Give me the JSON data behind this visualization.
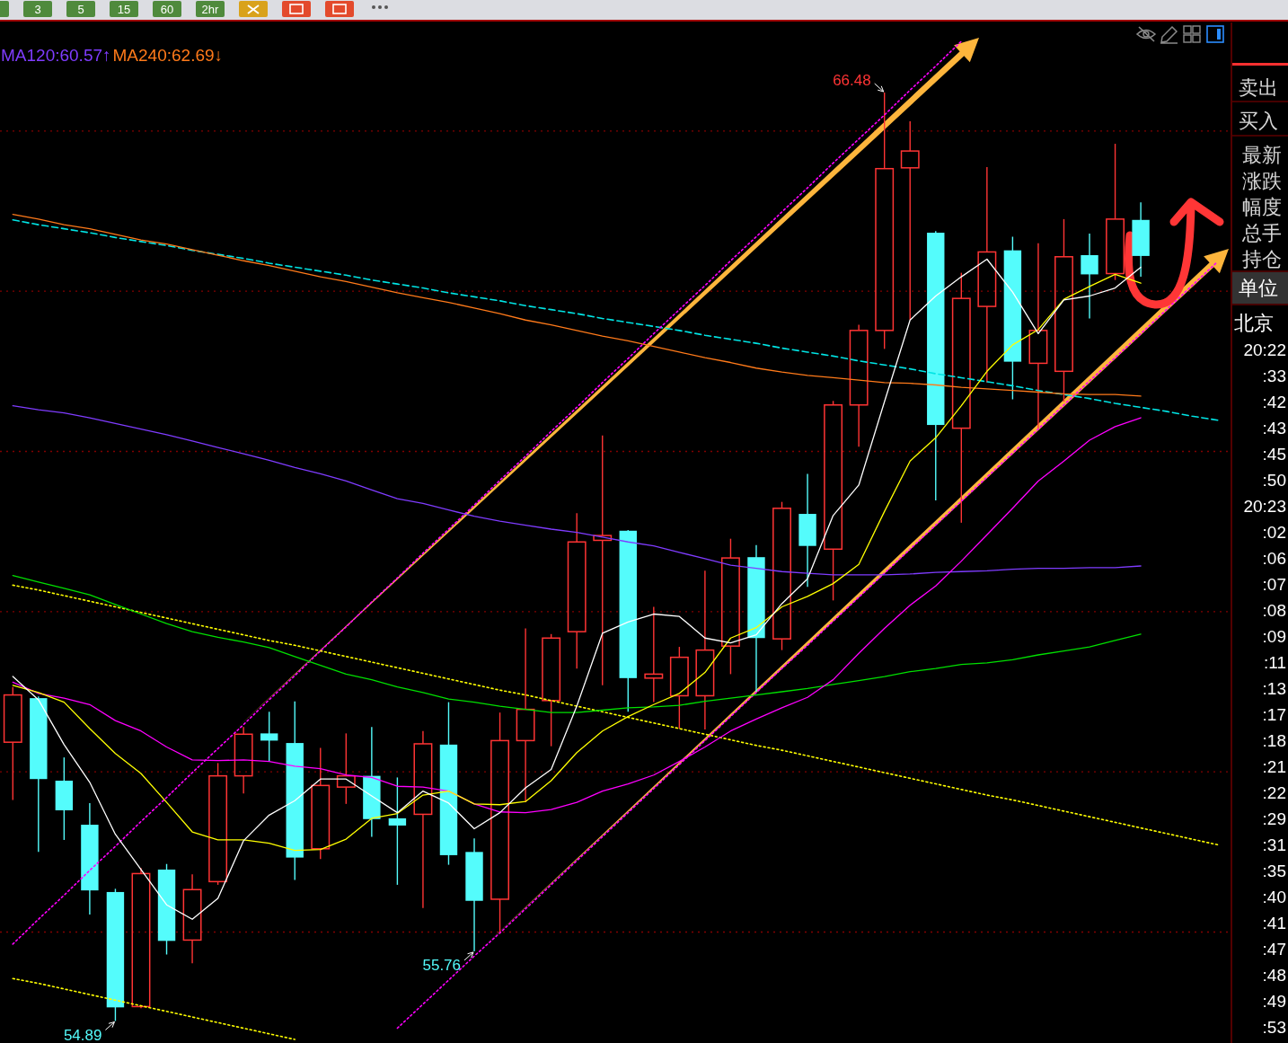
{
  "chart_data": [
    {
      "type": "candlestick",
      "categories": [
        null,
        null,
        null,
        null,
        null,
        null,
        null,
        null,
        null,
        null,
        null,
        null,
        null,
        null,
        null,
        null,
        null,
        null,
        null,
        null,
        null,
        null,
        null,
        null,
        null,
        null,
        null,
        null,
        null,
        null,
        null,
        null,
        null,
        null,
        null,
        null,
        null,
        null,
        null,
        null,
        null,
        null,
        null,
        null,
        null,
        null,
        null,
        null
      ],
      "ohlc": [
        [
          58.37,
          59.06,
          57.65,
          58.96
        ],
        [
          58.92,
          58.94,
          57.0,
          57.91
        ],
        [
          57.89,
          58.18,
          57.15,
          57.52
        ],
        [
          57.34,
          57.61,
          56.22,
          56.52
        ],
        [
          56.5,
          56.54,
          54.89,
          55.06
        ],
        [
          55.07,
          56.8,
          55.05,
          56.73
        ],
        [
          56.78,
          56.85,
          55.72,
          55.89
        ],
        [
          55.9,
          56.72,
          55.61,
          56.53
        ],
        [
          56.63,
          58.11,
          56.59,
          57.95
        ],
        [
          57.95,
          58.56,
          57.73,
          58.47
        ],
        [
          58.48,
          58.75,
          58.13,
          58.39
        ],
        [
          58.36,
          58.88,
          56.65,
          56.93
        ],
        [
          57.04,
          58.3,
          56.91,
          57.83
        ],
        [
          57.81,
          58.48,
          57.6,
          57.95
        ],
        [
          57.95,
          58.56,
          57.19,
          57.41
        ],
        [
          57.42,
          57.93,
          56.59,
          57.33
        ],
        [
          57.47,
          58.51,
          56.3,
          58.35
        ],
        [
          58.34,
          58.87,
          56.84,
          56.96
        ],
        [
          57.0,
          57.17,
          55.76,
          56.39
        ],
        [
          56.41,
          58.74,
          55.98,
          58.39
        ],
        [
          58.39,
          59.79,
          57.62,
          58.78
        ],
        [
          58.89,
          59.72,
          58.32,
          59.67
        ],
        [
          59.75,
          61.23,
          59.29,
          60.87
        ],
        [
          60.89,
          62.2,
          59.08,
          60.95
        ],
        [
          61.01,
          61.02,
          58.75,
          59.17
        ],
        [
          59.17,
          60.06,
          58.87,
          59.22
        ],
        [
          58.95,
          59.56,
          58.54,
          59.43
        ],
        [
          58.95,
          60.51,
          58.53,
          59.52
        ],
        [
          59.57,
          60.91,
          59.22,
          60.67
        ],
        [
          60.68,
          60.83,
          59.0,
          59.67
        ],
        [
          59.66,
          61.37,
          59.52,
          61.29
        ],
        [
          61.22,
          61.72,
          60.31,
          60.82
        ],
        [
          60.78,
          62.63,
          60.14,
          62.58
        ],
        [
          62.58,
          63.58,
          62.06,
          63.51
        ],
        [
          63.51,
          66.48,
          63.28,
          65.53
        ],
        [
          65.54,
          66.12,
          63.64,
          65.75
        ],
        [
          64.73,
          64.75,
          61.39,
          62.33
        ],
        [
          62.29,
          64.23,
          61.11,
          63.91
        ],
        [
          63.81,
          65.55,
          62.86,
          64.49
        ],
        [
          64.51,
          64.68,
          62.65,
          63.12
        ],
        [
          63.1,
          64.6,
          62.28,
          63.51
        ],
        [
          63.0,
          64.9,
          62.62,
          64.43
        ],
        [
          64.45,
          64.72,
          63.66,
          64.21
        ],
        [
          64.22,
          65.84,
          64.14,
          64.9
        ],
        [
          64.89,
          65.11,
          64.18,
          64.44
        ],
        null,
        null,
        null
      ],
      "series": [
        {
          "type": "line",
          "color": "#00e5e5",
          "line_style": "dashed",
          "values": [
            64.89,
            64.83,
            64.78,
            64.73,
            64.67,
            64.62,
            64.57,
            64.51,
            64.46,
            64.41,
            64.35,
            64.3,
            64.25,
            64.2,
            64.14,
            64.09,
            64.04,
            63.98,
            63.93,
            63.88,
            63.82,
            63.77,
            63.72,
            63.66,
            63.61,
            63.56,
            63.51,
            63.45,
            63.4,
            63.35,
            63.29,
            63.24,
            63.19,
            63.13,
            63.08,
            63.03,
            62.97,
            62.92,
            62.87,
            62.82,
            62.76,
            62.71,
            62.66,
            62.6,
            62.55,
            62.5,
            62.44,
            62.39
          ]
        },
        {
          "type": "line",
          "color": "#ffff00",
          "line_style": "dotted",
          "values": [
            60.33,
            60.27,
            60.2,
            60.13,
            60.06,
            59.99,
            59.92,
            59.85,
            59.78,
            59.71,
            59.64,
            59.58,
            59.51,
            59.44,
            59.37,
            59.3,
            59.23,
            59.16,
            59.09,
            59.02,
            58.96,
            58.89,
            58.82,
            58.75,
            58.68,
            58.61,
            58.54,
            58.47,
            58.4,
            58.33,
            58.27,
            58.2,
            58.13,
            58.06,
            57.99,
            57.92,
            57.85,
            57.78,
            57.71,
            57.65,
            57.58,
            57.51,
            57.44,
            57.37,
            57.3,
            57.23,
            57.16,
            57.09
          ]
        },
        {
          "type": "line",
          "color": "#ffff00",
          "line_style": "dotted",
          "values": [
            55.42,
            55.36,
            55.29,
            55.22,
            55.15,
            55.08,
            55.01,
            54.94,
            54.87,
            54.8,
            54.73,
            54.66,
            null,
            null,
            null,
            null,
            null,
            null,
            null,
            null,
            null,
            null,
            null,
            null,
            null,
            null,
            null,
            null,
            null,
            null,
            null,
            null,
            null,
            null,
            null,
            null,
            null,
            null,
            null,
            null,
            null,
            null,
            null,
            null,
            null,
            null,
            null,
            null
          ]
        },
        {
          "type": "line",
          "color": "#ff00ff",
          "line_style": "dotted",
          "values": [
            55.85,
            56.16,
            56.46,
            56.77,
            57.07,
            57.38,
            57.68,
            57.99,
            58.29,
            58.59,
            58.9,
            59.2,
            59.51,
            59.81,
            60.12,
            60.42,
            60.73,
            61.03,
            61.33,
            61.64,
            61.94,
            62.25,
            62.55,
            62.86,
            63.16,
            63.47,
            63.77,
            64.07,
            64.38,
            64.68,
            64.99,
            65.29,
            65.6,
            65.9,
            66.2,
            66.51,
            66.81,
            67.12,
            null,
            null,
            null,
            null,
            null,
            null,
            null,
            null,
            null,
            null
          ]
        },
        {
          "type": "line",
          "color": "#ff00ff",
          "line_style": "dotted",
          "values": [
            null,
            null,
            null,
            null,
            null,
            null,
            null,
            null,
            null,
            null,
            null,
            null,
            null,
            null,
            null,
            54.8,
            55.1,
            55.4,
            55.7,
            55.99,
            56.29,
            56.59,
            56.89,
            57.19,
            57.49,
            57.79,
            58.09,
            58.39,
            58.69,
            58.99,
            59.29,
            59.58,
            59.88,
            60.18,
            60.48,
            60.78,
            61.08,
            61.38,
            61.68,
            61.98,
            62.28,
            62.58,
            62.88,
            63.17,
            63.47,
            63.77,
            64.07,
            64.37
          ]
        },
        {
          "type": "line",
          "name": "MA120:60.57↑",
          "color": "#7f3cff",
          "values": [
            62.57,
            62.52,
            62.48,
            62.42,
            62.35,
            62.28,
            62.21,
            62.13,
            62.05,
            61.97,
            61.89,
            61.8,
            61.72,
            61.63,
            61.52,
            61.41,
            61.35,
            61.27,
            61.19,
            61.13,
            61.08,
            61.03,
            60.99,
            60.93,
            60.87,
            60.82,
            60.74,
            60.66,
            60.58,
            60.54,
            60.5,
            60.48,
            60.46,
            60.46,
            60.46,
            60.47,
            60.49,
            60.5,
            60.51,
            60.53,
            60.54,
            60.54,
            60.55,
            60.55,
            60.57,
            null,
            null,
            null
          ]
        },
        {
          "type": "line",
          "name": "MA240:62.69↓",
          "color": "#ff7a1a",
          "values": [
            64.96,
            64.9,
            64.83,
            64.78,
            64.71,
            64.64,
            64.59,
            64.52,
            64.45,
            64.38,
            64.32,
            64.25,
            64.18,
            64.12,
            64.05,
            63.98,
            63.92,
            63.86,
            63.79,
            63.72,
            63.64,
            63.58,
            63.51,
            63.44,
            63.38,
            63.31,
            63.24,
            63.17,
            63.11,
            63.04,
            62.99,
            62.95,
            62.92,
            62.89,
            62.86,
            62.85,
            62.83,
            62.8,
            62.78,
            62.76,
            62.74,
            62.72,
            62.71,
            62.71,
            62.69,
            null,
            null,
            null
          ]
        },
        {
          "type": "line",
          "color": "#00e000",
          "values": [
            60.45,
            60.37,
            60.29,
            60.21,
            60.09,
            59.97,
            59.85,
            59.75,
            59.68,
            59.62,
            59.55,
            59.44,
            59.33,
            59.22,
            59.15,
            59.06,
            58.99,
            58.91,
            58.87,
            58.82,
            58.78,
            58.74,
            58.74,
            58.77,
            58.8,
            58.81,
            58.83,
            58.88,
            58.92,
            58.96,
            59.0,
            59.04,
            59.09,
            59.14,
            59.19,
            59.25,
            59.29,
            59.34,
            59.36,
            59.4,
            59.46,
            59.51,
            59.56,
            59.64,
            59.72,
            null,
            null,
            null
          ]
        },
        {
          "type": "line",
          "color": "#ff00ff",
          "values": [
            59.12,
            58.98,
            58.92,
            58.84,
            58.64,
            58.51,
            58.31,
            58.15,
            58.14,
            58.15,
            58.13,
            58.07,
            58.04,
            57.96,
            57.93,
            57.82,
            57.81,
            57.76,
            57.6,
            57.5,
            57.49,
            57.53,
            57.62,
            57.76,
            57.85,
            57.96,
            58.13,
            58.31,
            58.51,
            58.66,
            58.8,
            58.93,
            59.15,
            59.48,
            59.79,
            60.08,
            60.32,
            60.63,
            60.96,
            61.29,
            61.63,
            61.88,
            62.14,
            62.31,
            62.42,
            null,
            null,
            null
          ]
        },
        {
          "type": "line",
          "color": "#ffff00",
          "values": [
            59.08,
            58.99,
            58.87,
            58.54,
            58.23,
            57.98,
            57.62,
            57.25,
            57.15,
            57.15,
            57.11,
            57.02,
            57.03,
            57.16,
            57.42,
            57.48,
            57.71,
            57.76,
            57.6,
            57.59,
            57.63,
            57.89,
            58.24,
            58.51,
            58.69,
            58.84,
            58.98,
            59.24,
            59.67,
            59.8,
            60.06,
            60.19,
            60.35,
            60.59,
            61.25,
            61.88,
            62.17,
            62.57,
            63.0,
            63.33,
            63.52,
            63.9,
            64.06,
            64.21,
            64.1,
            null,
            null,
            null
          ]
        },
        {
          "type": "line",
          "color": "#ffffff",
          "values": [
            59.19,
            58.9,
            58.34,
            57.87,
            57.22,
            56.78,
            56.34,
            56.16,
            56.42,
            57.14,
            57.46,
            57.64,
            57.91,
            57.91,
            57.7,
            57.49,
            57.76,
            57.61,
            57.29,
            57.49,
            57.8,
            58.03,
            58.82,
            59.73,
            59.87,
            59.97,
            59.94,
            59.67,
            59.61,
            59.71,
            60.1,
            60.41,
            61.2,
            61.58,
            62.62,
            63.64,
            63.94,
            64.18,
            64.4,
            63.99,
            63.47,
            63.89,
            63.94,
            64.04,
            64.3,
            null,
            null,
            null
          ]
        }
      ],
      "yticks": [
        {
          "value": 56,
          "label": null
        },
        {
          "value": 58,
          "label": null
        },
        {
          "value": 60,
          "label": null
        },
        {
          "value": 62,
          "label": null
        },
        {
          "value": 64,
          "label": null
        },
        {
          "value": 66,
          "label": null
        }
      ],
      "grid": "y",
      "legend": "top left",
      "annotations": [
        "66.48",
        "54.89",
        "55.76"
      ]
    },
    {
      "type": "other",
      "annotations": [
        "卖出",
        "买入",
        "最新",
        "涨跌",
        "幅度",
        "总手",
        "持仓",
        "单位",
        "北京",
        "20:22",
        ":33",
        ":42",
        ":43",
        ":45",
        ":50",
        "20:23",
        ":02",
        ":06",
        ":07",
        ":08",
        ":09",
        ":11",
        ":13",
        ":17",
        ":18",
        ":21",
        ":22",
        ":29",
        ":31",
        ":35",
        ":40",
        ":41",
        ":47",
        ":48",
        ":49",
        ":53"
      ]
    },
    {
      "type": "other",
      "annotations": [
        "3",
        "5",
        "15",
        "60",
        "2hr"
      ]
    }
  ]
}
